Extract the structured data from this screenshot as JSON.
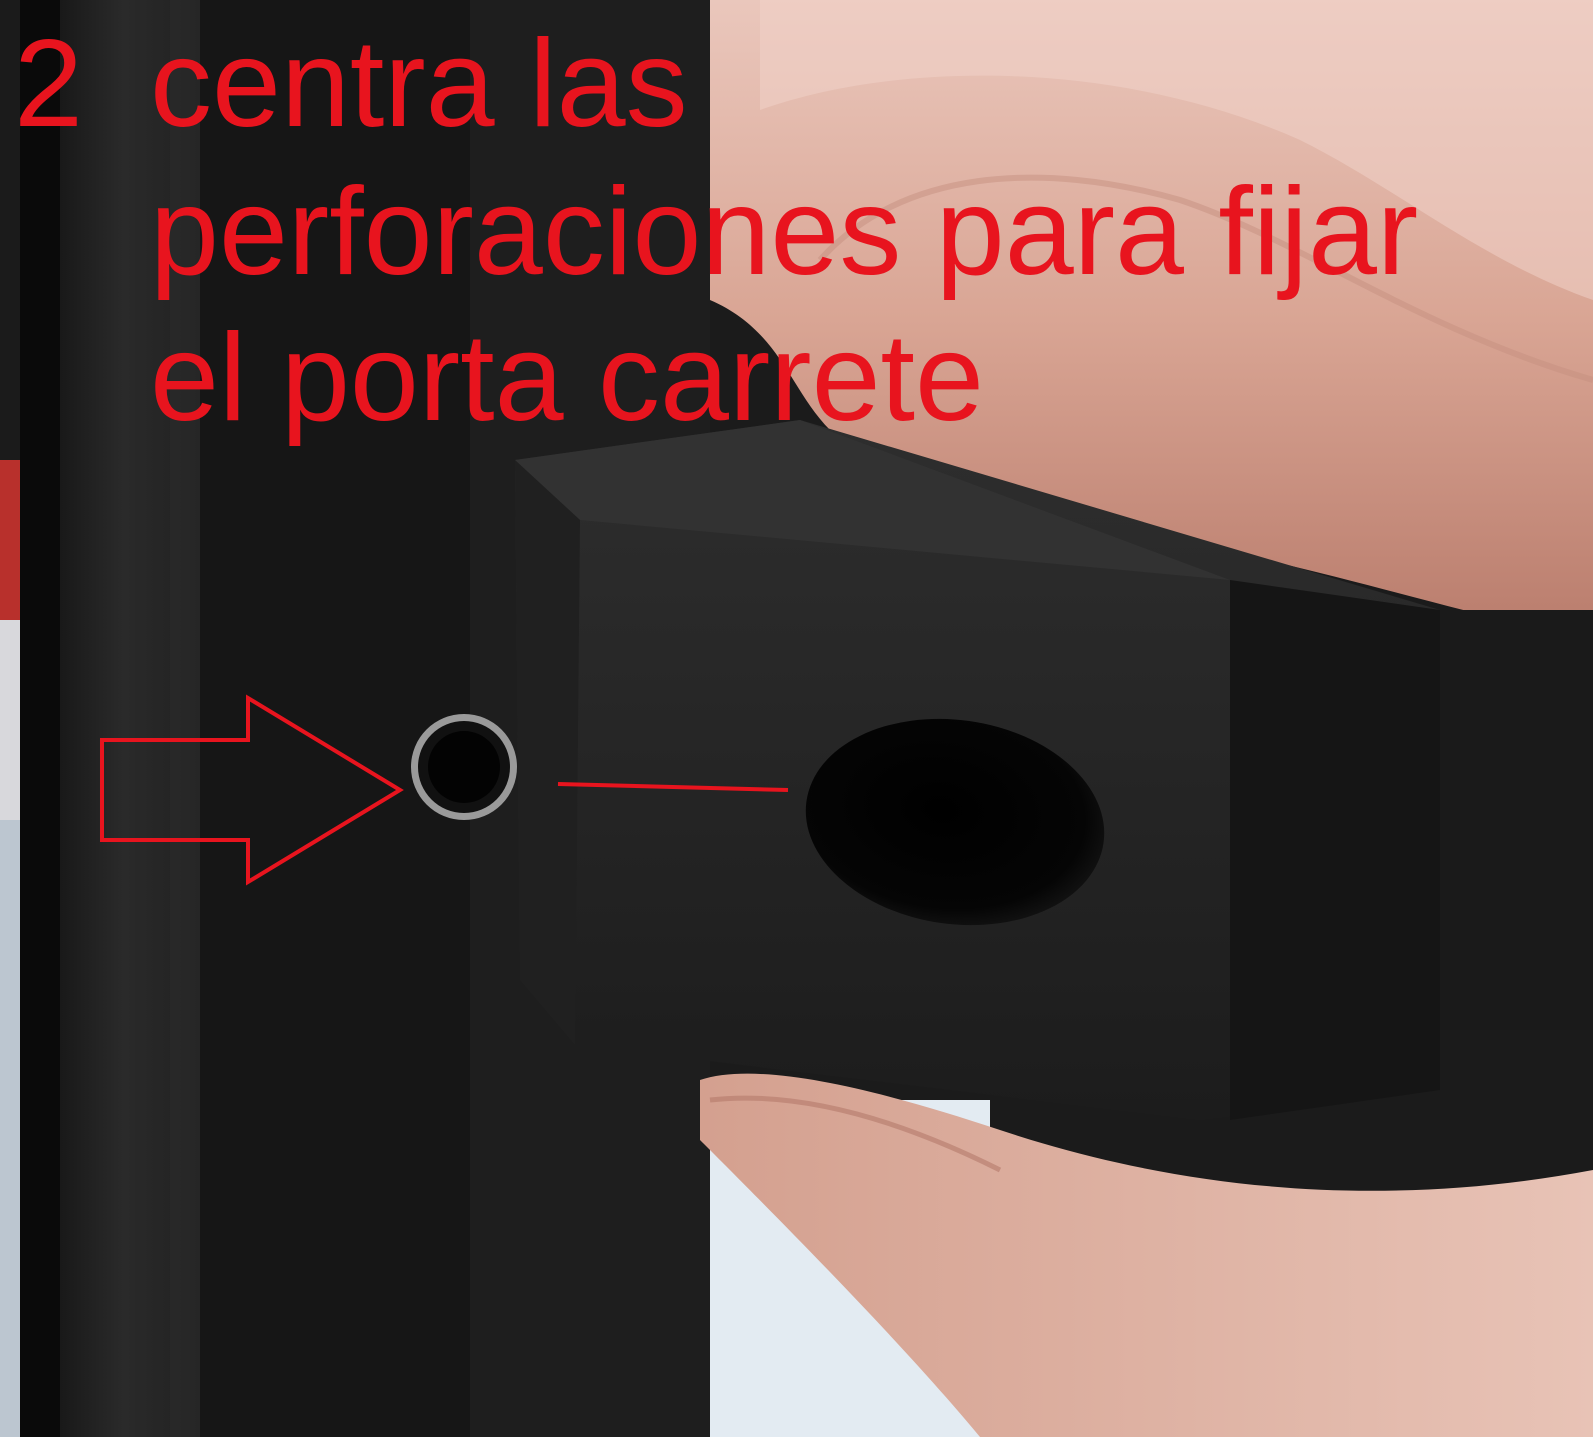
{
  "annotation": {
    "step_number": "2",
    "caption_lines": [
      "centra las",
      "perforaciones para fijar",
      "el porta carrete"
    ],
    "color": "#e8141e"
  },
  "icons": {
    "arrow": "right-arrow-outline-icon"
  },
  "palette": {
    "frame": "#141414",
    "printed_part": "#262626",
    "hole": "#050505",
    "skin": "#d8a898",
    "background_red": "#c8302e",
    "background_light": "#e6ecf2"
  }
}
